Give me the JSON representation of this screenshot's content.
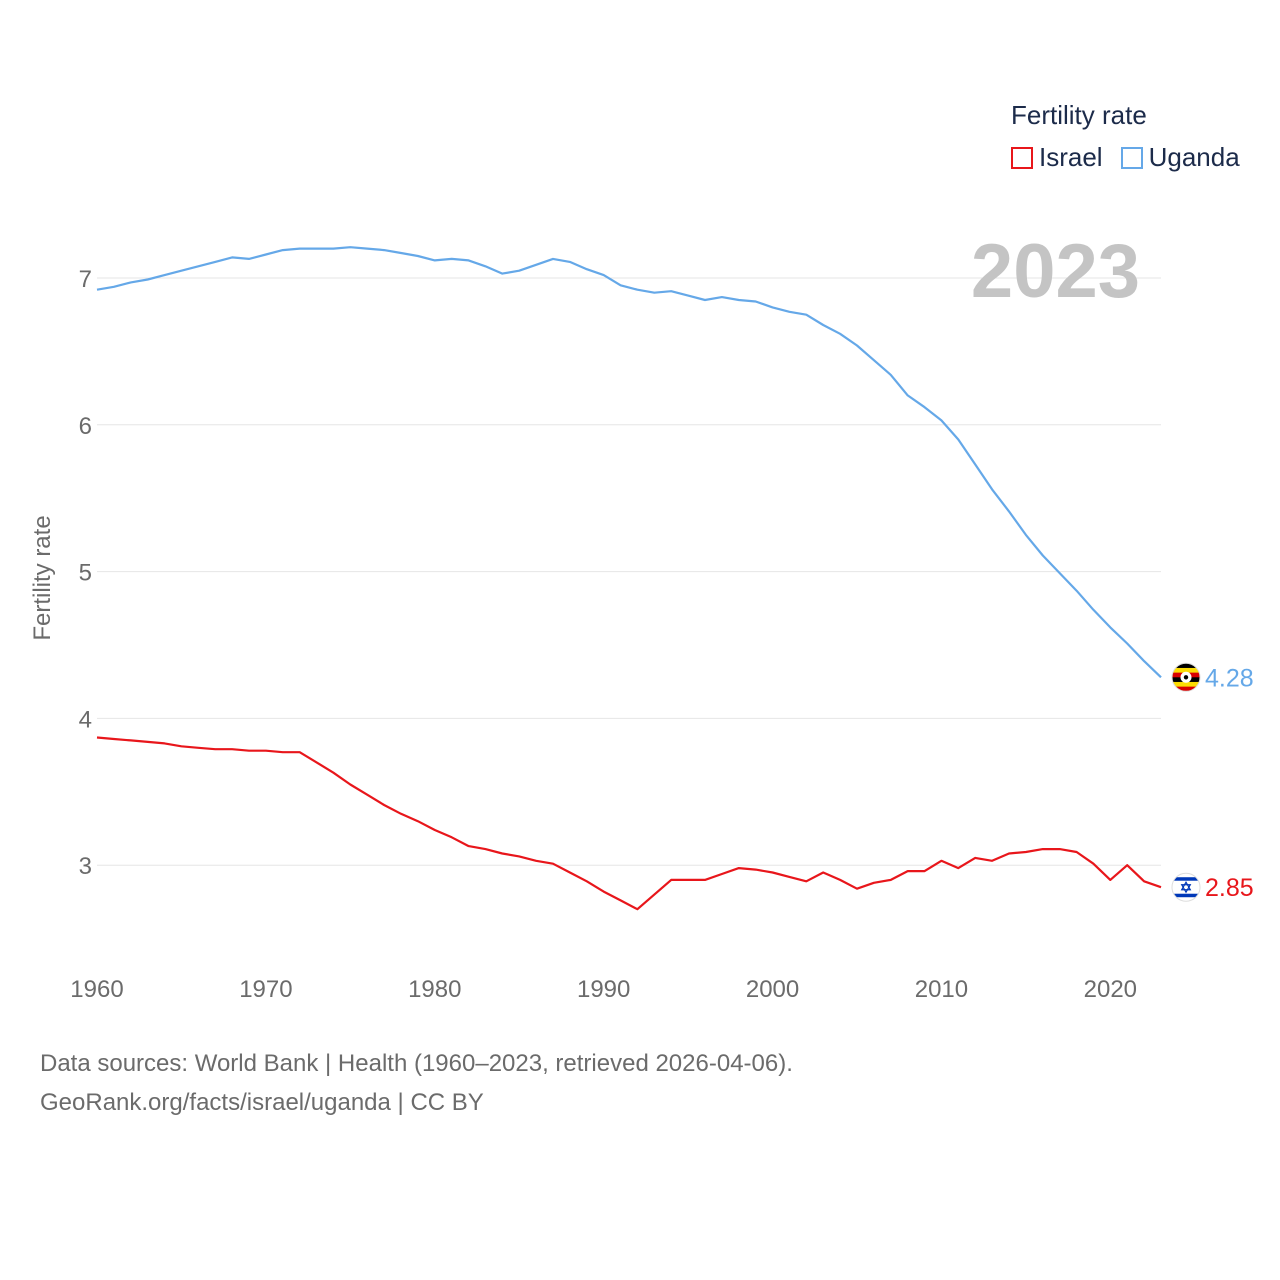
{
  "legend": {
    "title": "Fertility rate",
    "items": [
      {
        "label": "Israel",
        "color": "#e8161b"
      },
      {
        "label": "Uganda",
        "color": "#65a8e8"
      }
    ]
  },
  "current_year": "2023",
  "footer": {
    "line1": "Data sources: World Bank | Health (1960–2023, retrieved 2026-04-06).",
    "line2": "GeoRank.org/facts/israel/uganda | CC BY"
  },
  "chart_data": {
    "type": "line",
    "ylabel": "Fertility rate",
    "xlim": [
      1960,
      2023
    ],
    "ylim": [
      2.45,
      7.45
    ],
    "x_ticks": [
      1960,
      1970,
      1980,
      1990,
      2000,
      2010,
      2020
    ],
    "y_ticks": [
      3,
      4,
      5,
      6,
      7
    ],
    "x": [
      1960,
      1961,
      1962,
      1963,
      1964,
      1965,
      1966,
      1967,
      1968,
      1969,
      1970,
      1971,
      1972,
      1973,
      1974,
      1975,
      1976,
      1977,
      1978,
      1979,
      1980,
      1981,
      1982,
      1983,
      1984,
      1985,
      1986,
      1987,
      1988,
      1989,
      1990,
      1991,
      1992,
      1993,
      1994,
      1995,
      1996,
      1997,
      1998,
      1999,
      2000,
      2001,
      2002,
      2003,
      2004,
      2005,
      2006,
      2007,
      2008,
      2009,
      2010,
      2011,
      2012,
      2013,
      2014,
      2015,
      2016,
      2017,
      2018,
      2019,
      2020,
      2021,
      2022,
      2023
    ],
    "series": [
      {
        "name": "Uganda",
        "color": "#65a8e8",
        "end_label": "4.28",
        "values": [
          6.92,
          6.94,
          6.97,
          6.99,
          7.02,
          7.05,
          7.08,
          7.11,
          7.14,
          7.13,
          7.16,
          7.19,
          7.2,
          7.2,
          7.2,
          7.21,
          7.2,
          7.19,
          7.17,
          7.15,
          7.12,
          7.13,
          7.12,
          7.08,
          7.03,
          7.05,
          7.09,
          7.13,
          7.11,
          7.06,
          7.02,
          6.95,
          6.92,
          6.9,
          6.91,
          6.88,
          6.85,
          6.87,
          6.85,
          6.84,
          6.8,
          6.77,
          6.75,
          6.68,
          6.62,
          6.54,
          6.44,
          6.34,
          6.2,
          6.12,
          6.03,
          5.9,
          5.73,
          5.56,
          5.41,
          5.25,
          5.11,
          4.99,
          4.87,
          4.74,
          4.62,
          4.51,
          4.39,
          4.28
        ]
      },
      {
        "name": "Israel",
        "color": "#e8161b",
        "end_label": "2.85",
        "values": [
          3.87,
          3.86,
          3.85,
          3.84,
          3.83,
          3.81,
          3.8,
          3.79,
          3.79,
          3.78,
          3.78,
          3.77,
          3.77,
          3.7,
          3.63,
          3.55,
          3.48,
          3.41,
          3.35,
          3.3,
          3.24,
          3.19,
          3.13,
          3.11,
          3.08,
          3.06,
          3.03,
          3.01,
          2.95,
          2.89,
          2.82,
          2.76,
          2.7,
          2.8,
          2.9,
          2.9,
          2.9,
          2.94,
          2.98,
          2.97,
          2.95,
          2.92,
          2.89,
          2.95,
          2.9,
          2.84,
          2.88,
          2.9,
          2.96,
          2.96,
          3.03,
          2.98,
          3.05,
          3.03,
          3.08,
          3.09,
          3.11,
          3.11,
          3.09,
          3.01,
          2.9,
          3.0,
          2.89,
          2.85
        ]
      }
    ]
  }
}
